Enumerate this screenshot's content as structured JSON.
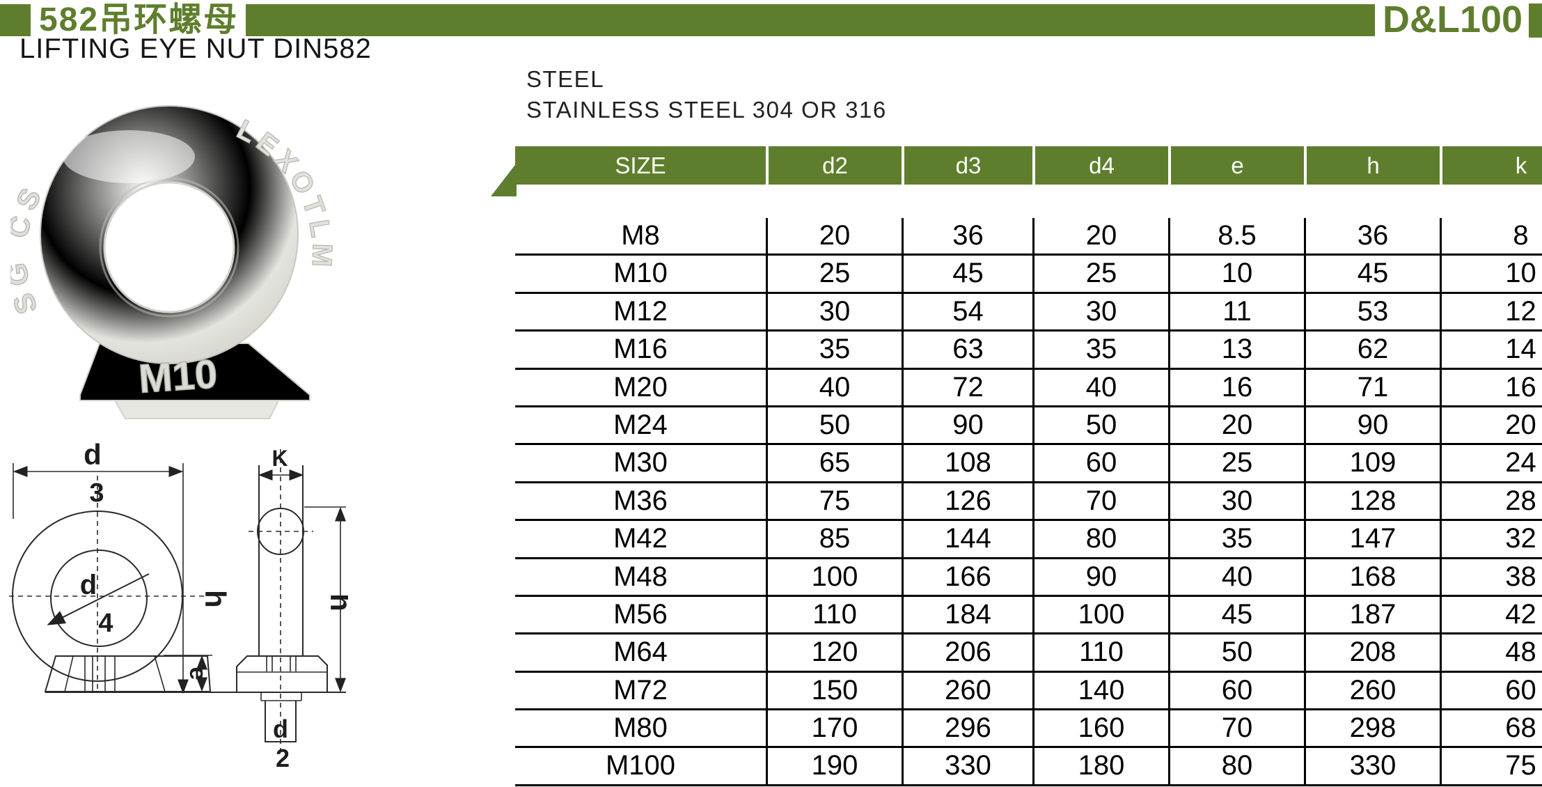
{
  "header": {
    "badge_text": "582吊环螺母",
    "brand": "D&L100",
    "accent_color": "#5f7e2d"
  },
  "title": "LIFTING EYE NUT DIN582",
  "materials": {
    "line1": "STEEL",
    "line2": "STAINLESS STEEL 304 OR 316"
  },
  "photo": {
    "embossed_center": "M10",
    "embossed_left": "SG CS",
    "embossed_right": "LEXOTLM"
  },
  "diagram": {
    "labels": {
      "front_top": "d",
      "front_top_sub": "3",
      "front_mid": "d",
      "front_mid_sub": "4",
      "front_height": "h",
      "front_base": "e",
      "side_width": "K",
      "side_height": "h",
      "side_bottom": "d",
      "side_bottom_sub": "2"
    }
  },
  "table": {
    "columns": [
      "SIZE",
      "d2",
      "d3",
      "d4",
      "e",
      "h",
      "k"
    ],
    "rows": [
      [
        "M8",
        "20",
        "36",
        "20",
        "8.5",
        "36",
        "8"
      ],
      [
        "M10",
        "25",
        "45",
        "25",
        "10",
        "45",
        "10"
      ],
      [
        "M12",
        "30",
        "54",
        "30",
        "11",
        "53",
        "12"
      ],
      [
        "M16",
        "35",
        "63",
        "35",
        "13",
        "62",
        "14"
      ],
      [
        "M20",
        "40",
        "72",
        "40",
        "16",
        "71",
        "16"
      ],
      [
        "M24",
        "50",
        "90",
        "50",
        "20",
        "90",
        "20"
      ],
      [
        "M30",
        "65",
        "108",
        "60",
        "25",
        "109",
        "24"
      ],
      [
        "M36",
        "75",
        "126",
        "70",
        "30",
        "128",
        "28"
      ],
      [
        "M42",
        "85",
        "144",
        "80",
        "35",
        "147",
        "32"
      ],
      [
        "M48",
        "100",
        "166",
        "90",
        "40",
        "168",
        "38"
      ],
      [
        "M56",
        "110",
        "184",
        "100",
        "45",
        "187",
        "42"
      ],
      [
        "M64",
        "120",
        "206",
        "110",
        "50",
        "208",
        "48"
      ],
      [
        "M72",
        "150",
        "260",
        "140",
        "60",
        "260",
        "60"
      ],
      [
        "M80",
        "170",
        "296",
        "160",
        "70",
        "298",
        "68"
      ],
      [
        "M100",
        "190",
        "330",
        "180",
        "80",
        "330",
        "75"
      ]
    ]
  }
}
